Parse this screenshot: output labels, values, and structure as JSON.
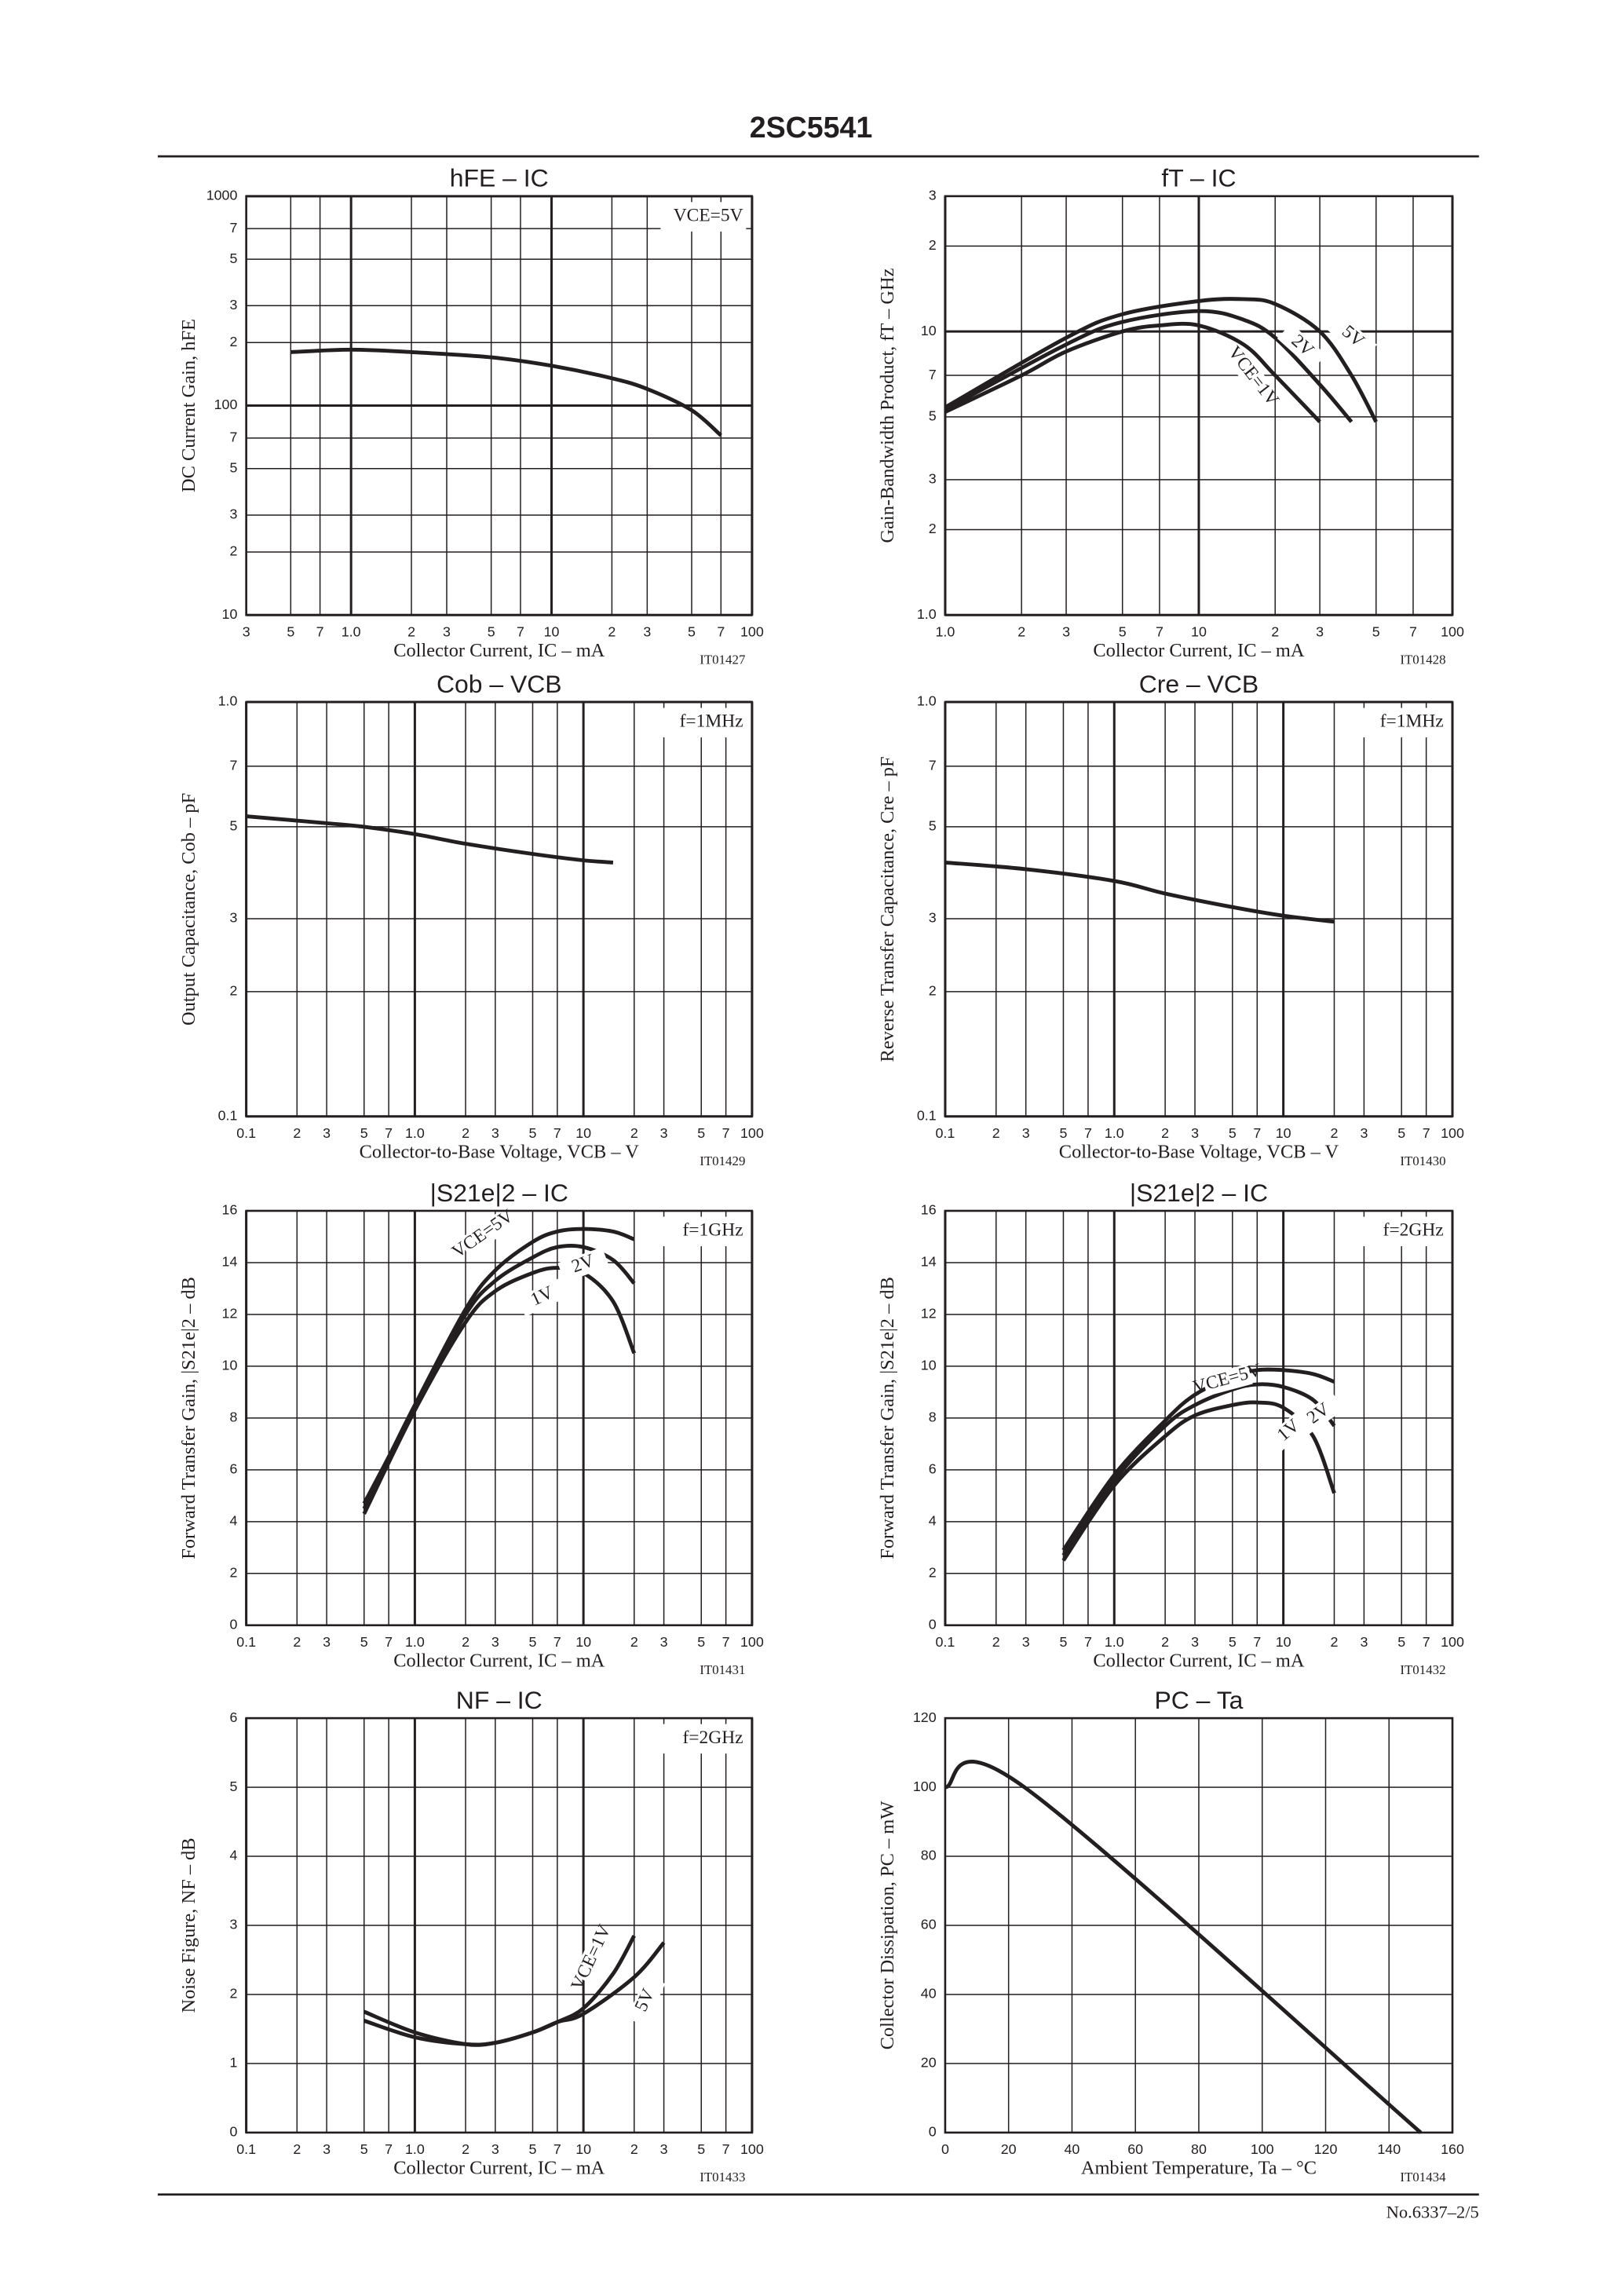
{
  "page": {
    "title": "2SC5541",
    "footer": "No.6337–2/5"
  },
  "chart_data": [
    {
      "type": "line",
      "title": "hFE – IC",
      "xlabel": "Collector Current, IC – mA",
      "ylabel": "DC Current Gain, hFE",
      "code": "IT01427",
      "condition": "VCE=5V",
      "xscale": "log",
      "yscale": "log",
      "xlim": [
        0.3,
        100
      ],
      "ylim": [
        10,
        1000
      ],
      "xticks": [
        {
          "value": 0.3,
          "label": "3"
        },
        {
          "value": 0.5,
          "label": "5"
        },
        {
          "value": 0.7,
          "label": "7"
        },
        {
          "value": 1,
          "label": "1.0"
        },
        2,
        3,
        5,
        7,
        10,
        {
          "value": 20,
          "label": "2"
        },
        {
          "value": 30,
          "label": "3"
        },
        {
          "value": 50,
          "label": "5"
        },
        {
          "value": 70,
          "label": "7"
        },
        100
      ],
      "yticks": [
        10,
        {
          "value": 20,
          "label": "2"
        },
        {
          "value": 30,
          "label": "3"
        },
        {
          "value": 50,
          "label": "5"
        },
        {
          "value": 70,
          "label": "7"
        },
        100,
        {
          "value": 200,
          "label": "2"
        },
        {
          "value": 300,
          "label": "3"
        },
        {
          "value": 500,
          "label": "5"
        },
        {
          "value": 700,
          "label": "7"
        },
        1000
      ],
      "series": [
        {
          "color": "#231f20",
          "x": [
            0.5,
            1,
            2,
            5,
            10,
            20,
            30,
            50,
            70
          ],
          "values": [
            180,
            185,
            180,
            170,
            155,
            135,
            120,
            95,
            72
          ]
        }
      ]
    },
    {
      "type": "line",
      "title": "fT – IC",
      "xlabel": "Collector Current, IC – mA",
      "ylabel": "Gain-Bandwidth Product, fT – GHz",
      "code": "IT01428",
      "xscale": "log",
      "yscale": "log",
      "xlim": [
        1,
        100
      ],
      "ylim": [
        1,
        30
      ],
      "xticks": [
        {
          "value": 1,
          "label": "1.0"
        },
        2,
        3,
        5,
        7,
        10,
        {
          "value": 20,
          "label": "2"
        },
        {
          "value": 30,
          "label": "3"
        },
        {
          "value": 50,
          "label": "5"
        },
        {
          "value": 70,
          "label": "7"
        },
        100
      ],
      "yticks": [
        {
          "value": 1,
          "label": "1.0"
        },
        2,
        3,
        5,
        7,
        10,
        {
          "value": 20,
          "label": "2"
        },
        {
          "value": 30,
          "label": "3"
        }
      ],
      "series": [
        {
          "name": "VCE=1V",
          "color": "#231f20",
          "x": [
            1,
            2,
            3,
            5,
            7,
            10,
            15,
            20,
            30
          ],
          "values": [
            5.2,
            7,
            8.5,
            10,
            10.5,
            10.5,
            9,
            7,
            4.8
          ]
        },
        {
          "name": "2V",
          "color": "#231f20",
          "x": [
            1,
            3,
            5,
            10,
            15,
            20,
            30,
            40
          ],
          "values": [
            5.3,
            9,
            10.8,
            11.8,
            11,
            9.5,
            6.5,
            4.8
          ]
        },
        {
          "name": "5V",
          "color": "#231f20",
          "x": [
            1,
            3,
            5,
            10,
            15,
            20,
            30,
            40,
            50
          ],
          "values": [
            5.4,
            9.5,
            11.5,
            12.8,
            13,
            12.5,
            10,
            7,
            4.8
          ]
        }
      ]
    },
    {
      "type": "line",
      "title": "Cob – VCB",
      "xlabel": "Collector-to-Base Voltage, VCB – V",
      "ylabel": "Output Capacitance, Cob – pF",
      "code": "IT01429",
      "condition": "f=1MHz",
      "xscale": "log",
      "yscale": "log",
      "xlim": [
        0.1,
        100
      ],
      "ylim": [
        0.1,
        1
      ],
      "xticks": [
        0.1,
        {
          "value": 0.2,
          "label": "2"
        },
        {
          "value": 0.3,
          "label": "3"
        },
        {
          "value": 0.5,
          "label": "5"
        },
        {
          "value": 0.7,
          "label": "7"
        },
        {
          "value": 1,
          "label": "1.0"
        },
        2,
        3,
        5,
        7,
        10,
        {
          "value": 20,
          "label": "2"
        },
        {
          "value": 30,
          "label": "3"
        },
        {
          "value": 50,
          "label": "5"
        },
        {
          "value": 70,
          "label": "7"
        },
        100
      ],
      "yticks": [
        0.1,
        {
          "value": 0.2,
          "label": "2"
        },
        {
          "value": 0.3,
          "label": "3"
        },
        {
          "value": 0.5,
          "label": "5"
        },
        {
          "value": 0.7,
          "label": "7"
        },
        {
          "value": 1,
          "label": "1.0"
        }
      ],
      "series": [
        {
          "color": "#231f20",
          "x": [
            0.1,
            0.3,
            0.5,
            1,
            2,
            5,
            10,
            15
          ],
          "values": [
            0.53,
            0.51,
            0.5,
            0.48,
            0.455,
            0.43,
            0.415,
            0.41
          ]
        }
      ]
    },
    {
      "type": "line",
      "title": "Cre – VCB",
      "xlabel": "Collector-to-Base Voltage, VCB – V",
      "ylabel": "Reverse Transfer Capacitance, Cre – pF",
      "code": "IT01430",
      "condition": "f=1MHz",
      "xscale": "log",
      "yscale": "log",
      "xlim": [
        0.1,
        100
      ],
      "ylim": [
        0.1,
        1
      ],
      "xticks": [
        0.1,
        {
          "value": 0.2,
          "label": "2"
        },
        {
          "value": 0.3,
          "label": "3"
        },
        {
          "value": 0.5,
          "label": "5"
        },
        {
          "value": 0.7,
          "label": "7"
        },
        {
          "value": 1,
          "label": "1.0"
        },
        2,
        3,
        5,
        7,
        10,
        {
          "value": 20,
          "label": "2"
        },
        {
          "value": 30,
          "label": "3"
        },
        {
          "value": 50,
          "label": "5"
        },
        {
          "value": 70,
          "label": "7"
        },
        100
      ],
      "yticks": [
        0.1,
        {
          "value": 0.2,
          "label": "2"
        },
        {
          "value": 0.3,
          "label": "3"
        },
        {
          "value": 0.5,
          "label": "5"
        },
        {
          "value": 0.7,
          "label": "7"
        },
        {
          "value": 1,
          "label": "1.0"
        }
      ],
      "series": [
        {
          "color": "#231f20",
          "x": [
            0.1,
            0.3,
            1,
            2,
            5,
            10,
            20
          ],
          "values": [
            0.41,
            0.395,
            0.37,
            0.345,
            0.32,
            0.305,
            0.295
          ]
        }
      ]
    },
    {
      "type": "line",
      "title": "|S21e|2 – IC",
      "xlabel": "Collector Current, IC – mA",
      "ylabel": "Forward Transfer Gain, |S21e|2 – dB",
      "code": "IT01431",
      "condition": "f=1GHz",
      "xscale": "log",
      "yscale": "linear",
      "xlim": [
        0.1,
        100
      ],
      "ylim": [
        0,
        16
      ],
      "xticks": [
        0.1,
        {
          "value": 0.2,
          "label": "2"
        },
        {
          "value": 0.3,
          "label": "3"
        },
        {
          "value": 0.5,
          "label": "5"
        },
        {
          "value": 0.7,
          "label": "7"
        },
        {
          "value": 1,
          "label": "1.0"
        },
        2,
        3,
        5,
        7,
        10,
        {
          "value": 20,
          "label": "2"
        },
        {
          "value": 30,
          "label": "3"
        },
        {
          "value": 50,
          "label": "5"
        },
        {
          "value": 70,
          "label": "7"
        },
        100
      ],
      "yticks": [
        0,
        2,
        4,
        6,
        8,
        10,
        12,
        14,
        16
      ],
      "series": [
        {
          "name": "VCE=5V",
          "color": "#231f20",
          "x": [
            0.5,
            0.7,
            1,
            2,
            3,
            5,
            7,
            10,
            15,
            20
          ],
          "values": [
            4.7,
            6.5,
            8.5,
            12.2,
            13.7,
            14.8,
            15.2,
            15.3,
            15.2,
            14.9
          ]
        },
        {
          "name": "2V",
          "color": "#231f20",
          "x": [
            0.5,
            1,
            2,
            3,
            5,
            7,
            10,
            15,
            20
          ],
          "values": [
            4.5,
            8.4,
            12,
            13.3,
            14.2,
            14.6,
            14.6,
            14.1,
            13.2
          ]
        },
        {
          "name": "1V",
          "color": "#231f20",
          "x": [
            0.5,
            1,
            2,
            3,
            5,
            7,
            10,
            15,
            20
          ],
          "values": [
            4.3,
            8.3,
            11.7,
            12.9,
            13.6,
            13.8,
            13.6,
            12.5,
            10.5
          ]
        }
      ]
    },
    {
      "type": "line",
      "title": "|S21e|2 – IC",
      "xlabel": "Collector Current, IC – mA",
      "ylabel": "Forward Transfer Gain, |S21e|2 – dB",
      "code": "IT01432",
      "condition": "f=2GHz",
      "xscale": "log",
      "yscale": "linear",
      "xlim": [
        0.1,
        100
      ],
      "ylim": [
        0,
        16
      ],
      "xticks": [
        0.1,
        {
          "value": 0.2,
          "label": "2"
        },
        {
          "value": 0.3,
          "label": "3"
        },
        {
          "value": 0.5,
          "label": "5"
        },
        {
          "value": 0.7,
          "label": "7"
        },
        {
          "value": 1,
          "label": "1.0"
        },
        2,
        3,
        5,
        7,
        10,
        {
          "value": 20,
          "label": "2"
        },
        {
          "value": 30,
          "label": "3"
        },
        {
          "value": 50,
          "label": "5"
        },
        {
          "value": 70,
          "label": "7"
        },
        100
      ],
      "yticks": [
        0,
        2,
        4,
        6,
        8,
        10,
        12,
        14,
        16
      ],
      "series": [
        {
          "name": "VCE=5V",
          "color": "#231f20",
          "x": [
            0.5,
            1,
            2,
            3,
            5,
            7,
            10,
            15,
            20
          ],
          "values": [
            2.9,
            5.8,
            7.9,
            8.9,
            9.6,
            9.85,
            9.85,
            9.7,
            9.4
          ]
        },
        {
          "name": "2V",
          "color": "#231f20",
          "x": [
            0.5,
            1,
            2,
            3,
            5,
            7,
            10,
            15,
            20
          ],
          "values": [
            2.7,
            5.6,
            7.7,
            8.5,
            9.1,
            9.3,
            9.2,
            8.7,
            7.7
          ]
        },
        {
          "name": "1V",
          "color": "#231f20",
          "x": [
            0.5,
            1,
            2,
            3,
            5,
            7,
            10,
            15,
            20
          ],
          "values": [
            2.5,
            5.4,
            7.3,
            8.1,
            8.5,
            8.6,
            8.4,
            7.3,
            5.1
          ]
        }
      ]
    },
    {
      "type": "line",
      "title": "NF – IC",
      "xlabel": "Collector Current, IC – mA",
      "ylabel": "Noise Figure, NF – dB",
      "code": "IT01433",
      "condition": "f=2GHz",
      "xscale": "log",
      "yscale": "linear",
      "xlim": [
        0.1,
        100
      ],
      "ylim": [
        0,
        6
      ],
      "xticks": [
        0.1,
        {
          "value": 0.2,
          "label": "2"
        },
        {
          "value": 0.3,
          "label": "3"
        },
        {
          "value": 0.5,
          "label": "5"
        },
        {
          "value": 0.7,
          "label": "7"
        },
        {
          "value": 1,
          "label": "1.0"
        },
        2,
        3,
        5,
        7,
        10,
        {
          "value": 20,
          "label": "2"
        },
        {
          "value": 30,
          "label": "3"
        },
        {
          "value": 50,
          "label": "5"
        },
        {
          "value": 70,
          "label": "7"
        },
        100
      ],
      "yticks": [
        0,
        1,
        2,
        3,
        4,
        5,
        6
      ],
      "series": [
        {
          "name": "VCE=1V",
          "color": "#231f20",
          "x": [
            0.5,
            1,
            2,
            3,
            5,
            7,
            10,
            15,
            20
          ],
          "values": [
            1.75,
            1.45,
            1.28,
            1.3,
            1.45,
            1.6,
            1.8,
            2.3,
            2.85
          ]
        },
        {
          "name": "5V",
          "color": "#231f20",
          "x": [
            0.5,
            1,
            2,
            3,
            5,
            7,
            10,
            20,
            30
          ],
          "values": [
            1.62,
            1.38,
            1.28,
            1.3,
            1.45,
            1.6,
            1.72,
            2.25,
            2.75
          ]
        }
      ]
    },
    {
      "type": "line",
      "title": "PC – Ta",
      "xlabel": "Ambient Temperature, Ta – °C",
      "ylabel": "Collector Dissipation, PC – mW",
      "code": "IT01434",
      "xscale": "linear",
      "yscale": "linear",
      "xlim": [
        0,
        160
      ],
      "ylim": [
        0,
        120
      ],
      "xticks": [
        0,
        20,
        40,
        60,
        80,
        100,
        120,
        140,
        160
      ],
      "yticks": [
        0,
        20,
        40,
        60,
        80,
        100,
        120
      ],
      "series": [
        {
          "color": "#231f20",
          "x": [
            0,
            25,
            150
          ],
          "values": [
            100,
            100,
            0
          ]
        }
      ]
    }
  ]
}
